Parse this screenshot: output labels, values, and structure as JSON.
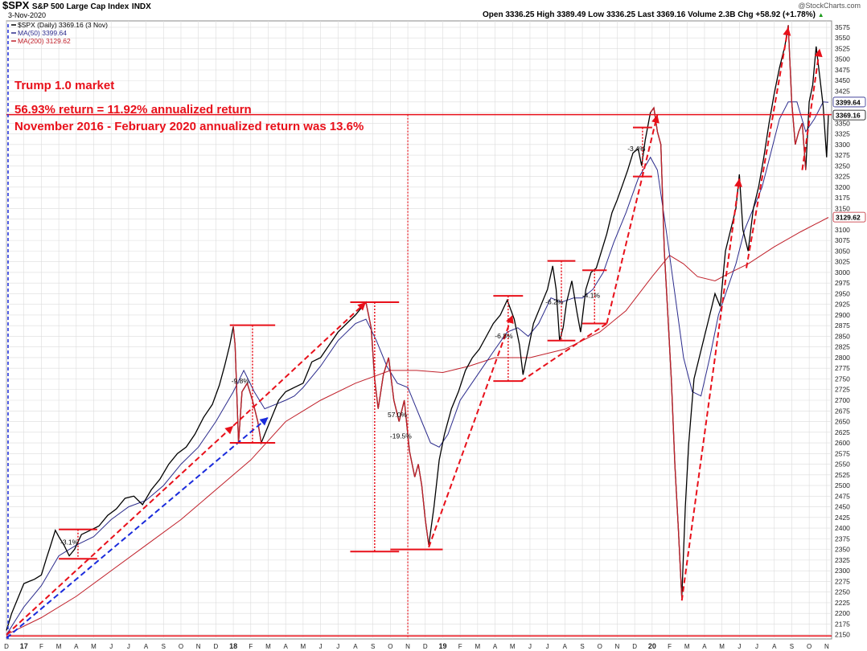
{
  "header": {
    "symbol": "$SPX",
    "name": "S&P 500 Large Cap Index",
    "exchange": "INDX",
    "date": "3-Nov-2020",
    "watermark": "@StockCharts.com",
    "ohlc": "Open 3336.25  High 3389.49  Low 3336.25  Last 3369.16  Volume 2.3B  Chg +58.92 (+1.78%)",
    "ohlc_up_arrow": "▲"
  },
  "legend": [
    {
      "label": "$SPX (Daily) 3369.16 (3 Nov)",
      "color": "#000000"
    },
    {
      "label": "MA(50) 3399.64",
      "color": "#2b2b8c"
    },
    {
      "label": "MA(200) 3129.62",
      "color": "#c0202a"
    }
  ],
  "annotations": {
    "title": "Trump 1.0 market",
    "line1": "56.93% return = 11.92% annualized return",
    "line2": "November 2016 - February 2020 annualized return was 13.6%"
  },
  "colors": {
    "price": "#000000",
    "ma50": "#2b2b8c",
    "ma200": "#c0202a",
    "annotation": "#e8101a",
    "blue_trend": "#1a2bdc",
    "grid": "#dcdcdc",
    "highlight_red_price": "#c0202a"
  },
  "chart_data": {
    "type": "line",
    "title": "$SPX S&P 500 Large Cap Index INDX",
    "ylim": [
      2140,
      3590
    ],
    "y_ticks": [
      2150,
      2175,
      2200,
      2225,
      2250,
      2275,
      2300,
      2325,
      2350,
      2375,
      2400,
      2425,
      2450,
      2475,
      2500,
      2525,
      2550,
      2575,
      2600,
      2625,
      2650,
      2675,
      2700,
      2725,
      2750,
      2775,
      2800,
      2825,
      2850,
      2875,
      2900,
      2925,
      2950,
      2975,
      3000,
      3025,
      3050,
      3075,
      3100,
      3125,
      3150,
      3175,
      3200,
      3225,
      3250,
      3275,
      3300,
      3325,
      3350,
      3375,
      3400,
      3425,
      3450,
      3475,
      3500,
      3525,
      3550,
      3575
    ],
    "x_ticks": [
      "D",
      "17",
      "F",
      "M",
      "A",
      "M",
      "J",
      "J",
      "A",
      "S",
      "O",
      "N",
      "D",
      "18",
      "F",
      "M",
      "A",
      "M",
      "J",
      "J",
      "A",
      "S",
      "O",
      "N",
      "D",
      "19",
      "F",
      "M",
      "A",
      "M",
      "J",
      "J",
      "A",
      "S",
      "O",
      "N",
      "D",
      "20",
      "F",
      "M",
      "A",
      "M",
      "J",
      "J",
      "A",
      "S",
      "O",
      "N"
    ],
    "x_month_index_range": [
      0,
      47.1
    ],
    "price_tags": {
      "last": "3369.16",
      "ma50": "3399.64",
      "ma200": "3129.62"
    },
    "series": [
      {
        "name": "$SPX (Daily)",
        "points": [
          [
            0,
            2160
          ],
          [
            0.3,
            2200
          ],
          [
            0.7,
            2240
          ],
          [
            1.0,
            2270
          ],
          [
            1.3,
            2275
          ],
          [
            1.6,
            2280
          ],
          [
            2.0,
            2290
          ],
          [
            2.3,
            2330
          ],
          [
            2.5,
            2355
          ],
          [
            2.8,
            2395
          ],
          [
            3.0,
            2380
          ],
          [
            3.3,
            2360
          ],
          [
            3.6,
            2335
          ],
          [
            3.9,
            2350
          ],
          [
            4.3,
            2385
          ],
          [
            4.8,
            2395
          ],
          [
            5.3,
            2405
          ],
          [
            5.8,
            2430
          ],
          [
            6.3,
            2445
          ],
          [
            6.8,
            2470
          ],
          [
            7.3,
            2475
          ],
          [
            7.8,
            2455
          ],
          [
            8.3,
            2490
          ],
          [
            8.8,
            2515
          ],
          [
            9.3,
            2550
          ],
          [
            9.8,
            2575
          ],
          [
            10.3,
            2590
          ],
          [
            10.8,
            2620
          ],
          [
            11.3,
            2660
          ],
          [
            11.8,
            2690
          ],
          [
            12.2,
            2735
          ],
          [
            12.5,
            2780
          ],
          [
            12.8,
            2830
          ],
          [
            13.0,
            2873
          ],
          [
            13.1,
            2830
          ],
          [
            13.3,
            2600
          ],
          [
            13.5,
            2720
          ],
          [
            13.8,
            2740
          ],
          [
            14.1,
            2700
          ],
          [
            14.4,
            2650
          ],
          [
            14.6,
            2600
          ],
          [
            14.9,
            2630
          ],
          [
            15.2,
            2660
          ],
          [
            15.6,
            2700
          ],
          [
            16.0,
            2720
          ],
          [
            16.5,
            2730
          ],
          [
            17.0,
            2740
          ],
          [
            17.5,
            2790
          ],
          [
            18.0,
            2800
          ],
          [
            18.5,
            2830
          ],
          [
            19.0,
            2860
          ],
          [
            19.5,
            2880
          ],
          [
            20.0,
            2900
          ],
          [
            20.3,
            2915
          ],
          [
            20.6,
            2930
          ],
          [
            20.9,
            2870
          ],
          [
            21.1,
            2750
          ],
          [
            21.3,
            2680
          ],
          [
            21.6,
            2760
          ],
          [
            21.9,
            2800
          ],
          [
            22.2,
            2700
          ],
          [
            22.5,
            2650
          ],
          [
            22.8,
            2700
          ],
          [
            23.1,
            2580
          ],
          [
            23.4,
            2520
          ],
          [
            23.6,
            2550
          ],
          [
            23.8,
            2500
          ],
          [
            24.0,
            2420
          ],
          [
            24.2,
            2360
          ],
          [
            24.5,
            2450
          ],
          [
            24.8,
            2560
          ],
          [
            25.1,
            2620
          ],
          [
            25.5,
            2680
          ],
          [
            25.9,
            2720
          ],
          [
            26.3,
            2770
          ],
          [
            26.7,
            2800
          ],
          [
            27.1,
            2820
          ],
          [
            27.5,
            2850
          ],
          [
            27.9,
            2880
          ],
          [
            28.3,
            2900
          ],
          [
            28.7,
            2935
          ],
          [
            29.1,
            2890
          ],
          [
            29.4,
            2830
          ],
          [
            29.6,
            2760
          ],
          [
            29.9,
            2820
          ],
          [
            30.2,
            2880
          ],
          [
            30.6,
            2920
          ],
          [
            31.0,
            2960
          ],
          [
            31.3,
            3015
          ],
          [
            31.5,
            2960
          ],
          [
            31.7,
            2840
          ],
          [
            31.9,
            2870
          ],
          [
            32.1,
            2930
          ],
          [
            32.4,
            2980
          ],
          [
            32.7,
            2905
          ],
          [
            32.9,
            2860
          ],
          [
            33.2,
            2960
          ],
          [
            33.5,
            3000
          ],
          [
            33.8,
            3010
          ],
          [
            34.1,
            3050
          ],
          [
            34.4,
            3090
          ],
          [
            34.7,
            3140
          ],
          [
            35.0,
            3170
          ],
          [
            35.3,
            3205
          ],
          [
            35.6,
            3240
          ],
          [
            35.9,
            3280
          ],
          [
            36.2,
            3290
          ],
          [
            36.4,
            3250
          ],
          [
            36.6,
            3310
          ],
          [
            36.9,
            3375
          ],
          [
            37.1,
            3386
          ],
          [
            37.3,
            3330
          ],
          [
            37.5,
            3300
          ],
          [
            37.7,
            3050
          ],
          [
            37.9,
            2900
          ],
          [
            38.1,
            2750
          ],
          [
            38.3,
            2550
          ],
          [
            38.5,
            2400
          ],
          [
            38.7,
            2237
          ],
          [
            38.9,
            2450
          ],
          [
            39.1,
            2600
          ],
          [
            39.4,
            2750
          ],
          [
            39.7,
            2800
          ],
          [
            40.0,
            2850
          ],
          [
            40.3,
            2900
          ],
          [
            40.6,
            2950
          ],
          [
            40.9,
            2920
          ],
          [
            41.2,
            3050
          ],
          [
            41.5,
            3100
          ],
          [
            41.8,
            3150
          ],
          [
            42.0,
            3230
          ],
          [
            42.2,
            3100
          ],
          [
            42.5,
            3050
          ],
          [
            42.8,
            3150
          ],
          [
            43.1,
            3200
          ],
          [
            43.4,
            3270
          ],
          [
            43.7,
            3350
          ],
          [
            44.0,
            3420
          ],
          [
            44.3,
            3480
          ],
          [
            44.6,
            3530
          ],
          [
            44.8,
            3580
          ],
          [
            45.0,
            3400
          ],
          [
            45.2,
            3300
          ],
          [
            45.4,
            3330
          ],
          [
            45.6,
            3350
          ],
          [
            45.8,
            3240
          ],
          [
            46.0,
            3400
          ],
          [
            46.2,
            3440
          ],
          [
            46.4,
            3530
          ],
          [
            46.6,
            3460
          ],
          [
            46.8,
            3390
          ],
          [
            47.0,
            3270
          ],
          [
            47.1,
            3369
          ]
        ]
      },
      {
        "name": "MA(50)",
        "points": [
          [
            0,
            2150
          ],
          [
            1.0,
            2215
          ],
          [
            2.0,
            2265
          ],
          [
            3.0,
            2335
          ],
          [
            4.0,
            2360
          ],
          [
            5.0,
            2380
          ],
          [
            6.0,
            2420
          ],
          [
            7.0,
            2450
          ],
          [
            8.0,
            2465
          ],
          [
            9.0,
            2500
          ],
          [
            10.0,
            2550
          ],
          [
            11.0,
            2590
          ],
          [
            12.0,
            2650
          ],
          [
            13.0,
            2720
          ],
          [
            13.6,
            2770
          ],
          [
            14.2,
            2720
          ],
          [
            14.8,
            2680
          ],
          [
            15.4,
            2690
          ],
          [
            16.0,
            2700
          ],
          [
            16.5,
            2710
          ],
          [
            17.0,
            2730
          ],
          [
            18.0,
            2780
          ],
          [
            19.0,
            2840
          ],
          [
            20.0,
            2880
          ],
          [
            20.6,
            2890
          ],
          [
            21.2,
            2840
          ],
          [
            21.8,
            2780
          ],
          [
            22.4,
            2740
          ],
          [
            23.0,
            2730
          ],
          [
            23.8,
            2650
          ],
          [
            24.3,
            2600
          ],
          [
            24.8,
            2590
          ],
          [
            25.3,
            2620
          ],
          [
            26.0,
            2700
          ],
          [
            27.0,
            2760
          ],
          [
            28.0,
            2820
          ],
          [
            28.7,
            2860
          ],
          [
            29.3,
            2870
          ],
          [
            29.9,
            2850
          ],
          [
            30.5,
            2880
          ],
          [
            31.2,
            2940
          ],
          [
            31.8,
            2930
          ],
          [
            32.5,
            2940
          ],
          [
            33.0,
            2940
          ],
          [
            33.6,
            2960
          ],
          [
            34.2,
            3000
          ],
          [
            34.8,
            3070
          ],
          [
            35.5,
            3140
          ],
          [
            36.2,
            3220
          ],
          [
            36.9,
            3270
          ],
          [
            37.3,
            3240
          ],
          [
            37.8,
            3100
          ],
          [
            38.3,
            2950
          ],
          [
            38.8,
            2800
          ],
          [
            39.3,
            2720
          ],
          [
            39.8,
            2710
          ],
          [
            40.3,
            2800
          ],
          [
            40.8,
            2900
          ],
          [
            41.3,
            2960
          ],
          [
            41.8,
            3020
          ],
          [
            42.3,
            3100
          ],
          [
            42.8,
            3150
          ],
          [
            43.3,
            3200
          ],
          [
            43.8,
            3280
          ],
          [
            44.3,
            3360
          ],
          [
            44.8,
            3400
          ],
          [
            45.3,
            3400
          ],
          [
            45.8,
            3330
          ],
          [
            46.3,
            3360
          ],
          [
            46.8,
            3400
          ],
          [
            47.1,
            3399
          ]
        ]
      },
      {
        "name": "MA(200)",
        "points": [
          [
            0,
            2150
          ],
          [
            2.0,
            2190
          ],
          [
            4.0,
            2240
          ],
          [
            6.0,
            2300
          ],
          [
            8.0,
            2360
          ],
          [
            10.0,
            2420
          ],
          [
            12.0,
            2490
          ],
          [
            14.0,
            2560
          ],
          [
            16.0,
            2650
          ],
          [
            18.0,
            2700
          ],
          [
            20.0,
            2740
          ],
          [
            22.0,
            2770
          ],
          [
            23.5,
            2770
          ],
          [
            25.0,
            2765
          ],
          [
            26.5,
            2780
          ],
          [
            28.0,
            2800
          ],
          [
            30.0,
            2800
          ],
          [
            32.0,
            2820
          ],
          [
            34.0,
            2860
          ],
          [
            35.5,
            2910
          ],
          [
            37.0,
            2990
          ],
          [
            38.0,
            3040
          ],
          [
            38.8,
            3020
          ],
          [
            39.6,
            2990
          ],
          [
            40.6,
            2980
          ],
          [
            41.5,
            3000
          ],
          [
            42.5,
            3020
          ],
          [
            44.0,
            3060
          ],
          [
            45.5,
            3095
          ],
          [
            47.1,
            3129
          ]
        ]
      }
    ]
  },
  "drawdowns": [
    {
      "label": "-3.1%"
    },
    {
      "label": "-9.8%"
    },
    {
      "label": "57.0%"
    },
    {
      "label": "-19.5%"
    },
    {
      "label": "-6.8%"
    },
    {
      "label": "-6.2%"
    },
    {
      "label": "-4.1%"
    },
    {
      "label": "-3.4%"
    }
  ]
}
